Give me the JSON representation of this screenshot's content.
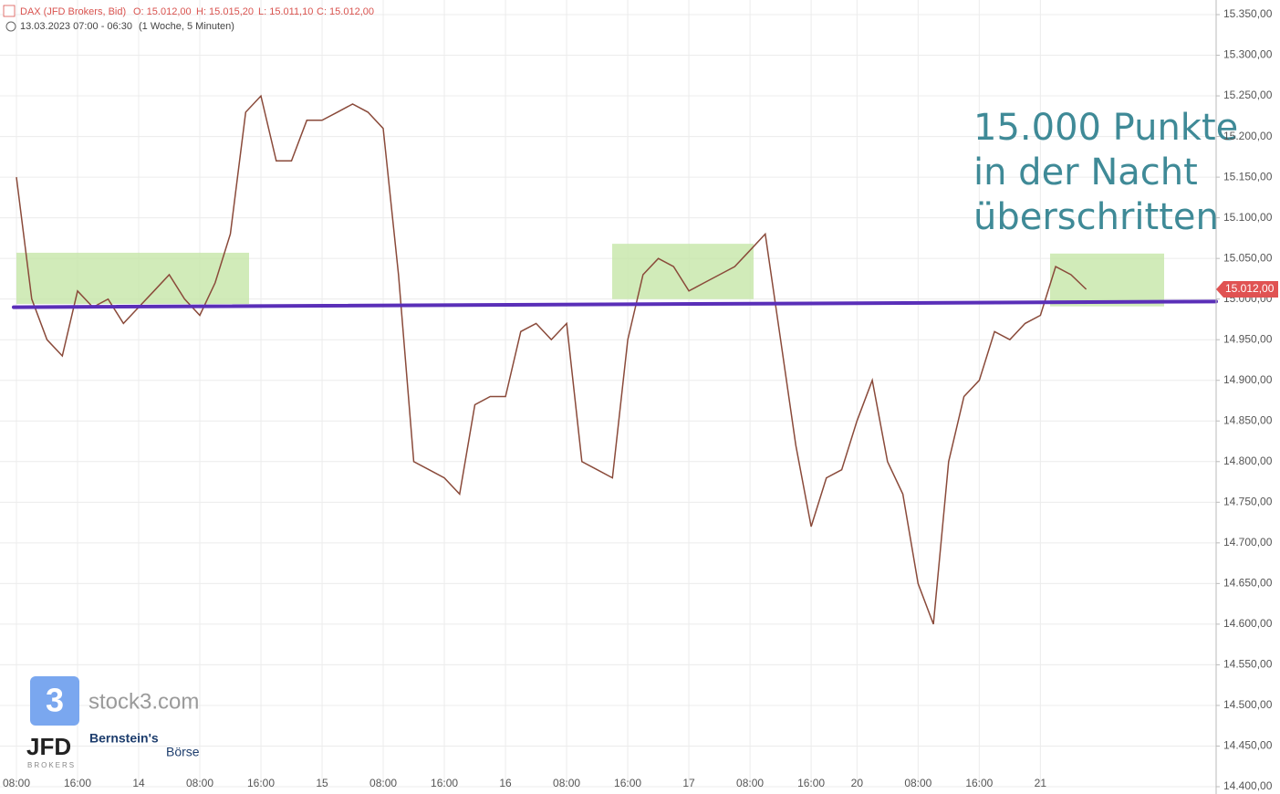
{
  "chart_data": {
    "type": "line",
    "header": {
      "instrument": "DAX (JFD Brokers, Bid)",
      "ohlc": [
        "O: 15.012,00",
        "H: 15.015,20",
        "L: 15.011,10",
        "C: 15.012,00"
      ],
      "period": "13.03.2023 07:00 - 06:30",
      "interval": "(1 Woche, 5 Minuten)"
    },
    "annotation": [
      "15.000 Punkte",
      "in der Nacht",
      "überschritten"
    ],
    "watermark": {
      "stock3": "stock3.com",
      "stock3_icon": "3",
      "jfd": "JFD",
      "jfd_sub": "BROKERS",
      "bernstein": "Bernstein's",
      "boerse": "Börse"
    },
    "categories": [
      "08:00",
      null,
      null,
      null,
      "16:00",
      null,
      null,
      null,
      "14",
      null,
      null,
      null,
      "08:00",
      null,
      null,
      null,
      "16:00",
      null,
      null,
      null,
      "15",
      null,
      null,
      null,
      "08:00",
      null,
      null,
      null,
      "16:00",
      null,
      null,
      null,
      "16",
      null,
      null,
      null,
      "08:00",
      null,
      null,
      null,
      "16:00",
      null,
      null,
      null,
      "17",
      null,
      null,
      null,
      "08:00",
      null,
      null,
      null,
      "16:00",
      null,
      null,
      "20",
      null,
      null,
      null,
      "08:00",
      null,
      null,
      null,
      "16:00",
      null,
      null,
      null,
      "21",
      null,
      null,
      null,
      null,
      null,
      null,
      null,
      null,
      null,
      null,
      null
    ],
    "values": [
      15150,
      15000,
      14950,
      14930,
      15010,
      14990,
      15000,
      14970,
      14990,
      15010,
      15030,
      15000,
      14980,
      15020,
      15080,
      15230,
      15250,
      15170,
      15170,
      15220,
      15220,
      15230,
      15240,
      15230,
      15210,
      15030,
      14800,
      14790,
      14780,
      14760,
      14870,
      14880,
      14880,
      14960,
      14970,
      14950,
      14970,
      14800,
      14790,
      14780,
      14950,
      15030,
      15050,
      15040,
      15010,
      15020,
      15030,
      15040,
      15060,
      15080,
      14950,
      14820,
      14720,
      14780,
      14790,
      14850,
      14900,
      14800,
      14760,
      14650,
      14600,
      14800,
      14880,
      14900,
      14960,
      14950,
      14970,
      14980,
      15040,
      15030,
      15012,
      null,
      null,
      null,
      null,
      null,
      null,
      null,
      null
    ],
    "color": "#8a4a3a",
    "ylim": [
      14400,
      15350
    ],
    "yticks": [
      {
        "value": 14400,
        "label": "14.400,00"
      },
      {
        "value": 14450,
        "label": "14.450,00"
      },
      {
        "value": 14500,
        "label": "14.500,00"
      },
      {
        "value": 14550,
        "label": "14.550,00"
      },
      {
        "value": 14600,
        "label": "14.600,00"
      },
      {
        "value": 14650,
        "label": "14.650,00"
      },
      {
        "value": 14700,
        "label": "14.700,00"
      },
      {
        "value": 14750,
        "label": "14.750,00"
      },
      {
        "value": 14800,
        "label": "14.800,00"
      },
      {
        "value": 14850,
        "label": "14.850,00"
      },
      {
        "value": 14900,
        "label": "14.900,00"
      },
      {
        "value": 14950,
        "label": "14.950,00"
      },
      {
        "value": 15000,
        "label": "15.000,00"
      },
      {
        "value": 15050,
        "label": "15.050,00"
      },
      {
        "value": 15100,
        "label": "15.100,00"
      },
      {
        "value": 15150,
        "label": "15.150,00"
      },
      {
        "value": 15200,
        "label": "15.200,00"
      },
      {
        "value": 15250,
        "label": "15.250,00"
      },
      {
        "value": 15300,
        "label": "15.300,00"
      },
      {
        "value": 15350,
        "label": "15.350,00"
      }
    ],
    "grid": true,
    "last_price": {
      "value": 15012,
      "label": "15.012,00",
      "color": "#e05252"
    },
    "zones": [
      {
        "range": [
          14994,
          15057
        ]
      },
      {
        "range": [
          15000,
          15068
        ]
      },
      {
        "range": [
          14991,
          15056
        ]
      }
    ],
    "zone_color": "#c6e6a8",
    "support_line": {
      "values": [
        14990,
        14997
      ],
      "color": "#5a2fb8"
    }
  }
}
